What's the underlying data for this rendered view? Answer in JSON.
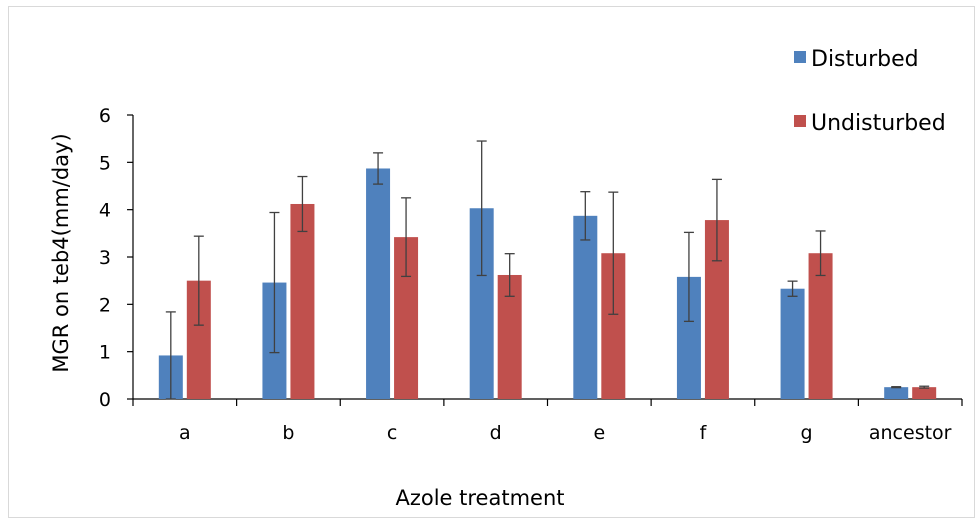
{
  "chart_data": {
    "type": "bar",
    "title": "",
    "xlabel": "Azole treatment",
    "ylabel": "MGR on teb4(mm/day)",
    "ylim": [
      0,
      6
    ],
    "yticks": [
      0,
      1,
      2,
      3,
      4,
      5,
      6
    ],
    "grid": false,
    "legend_position": "top-right",
    "categories": [
      "a",
      "b",
      "c",
      "d",
      "e",
      "f",
      "g",
      "ancestor"
    ],
    "series": [
      {
        "name": "Disturbed",
        "color": "#4F81BD",
        "values": [
          0.92,
          2.46,
          4.87,
          4.03,
          3.87,
          2.58,
          2.33,
          0.25
        ],
        "errors": [
          0.92,
          1.48,
          0.33,
          1.42,
          0.51,
          0.94,
          0.16,
          0.01
        ]
      },
      {
        "name": "Undisturbed",
        "color": "#C0504D",
        "values": [
          2.5,
          4.12,
          3.42,
          2.62,
          3.08,
          3.78,
          3.08,
          0.25
        ],
        "errors": [
          0.94,
          0.58,
          0.83,
          0.45,
          1.29,
          0.86,
          0.47,
          0.02
        ]
      }
    ]
  }
}
